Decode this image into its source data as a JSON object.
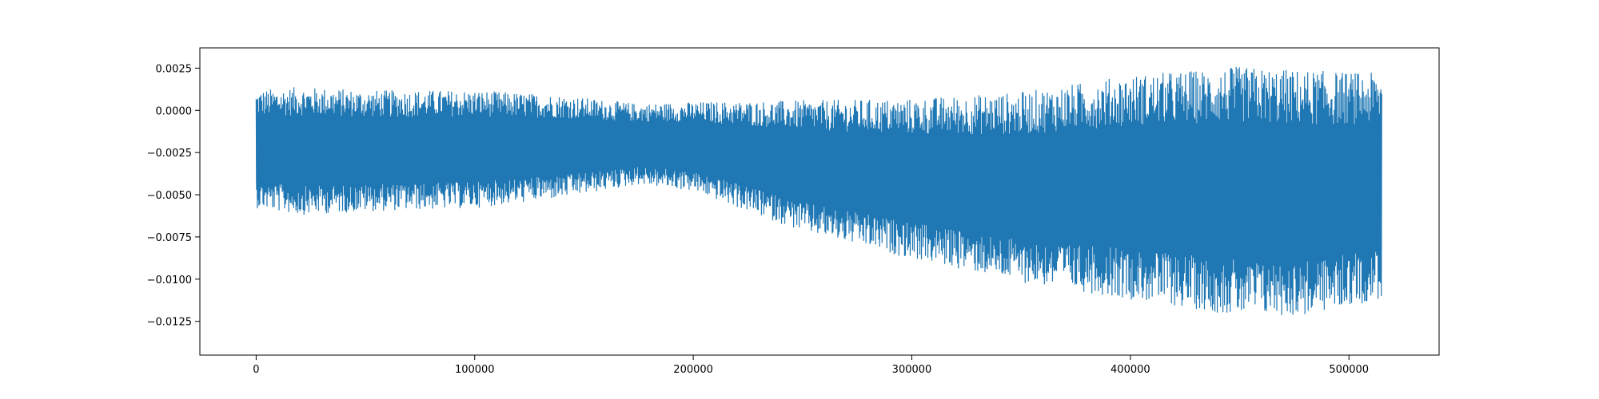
{
  "chart_data": {
    "type": "line",
    "title": "",
    "xlabel": "",
    "ylabel": "",
    "xlim": [
      -25750,
      541250
    ],
    "ylim": [
      -0.0145,
      0.0037
    ],
    "xticks": [
      0,
      100000,
      200000,
      300000,
      400000,
      500000
    ],
    "xtick_labels": [
      "0",
      "100000",
      "200000",
      "300000",
      "400000",
      "500000"
    ],
    "yticks": [
      0.0025,
      0.0,
      -0.0025,
      -0.005,
      -0.0075,
      -0.01,
      -0.0125
    ],
    "ytick_labels": [
      "0.0025",
      "0.0000",
      "−0.0025",
      "−0.0050",
      "−0.0075",
      "−0.0100",
      "−0.0125"
    ],
    "grid": false,
    "legend": "none",
    "series": [
      {
        "color": "#1f77b4",
        "x_range": [
          0,
          515000
        ],
        "baseline": -0.0018,
        "envelope_x": [
          0,
          20000,
          50000,
          100000,
          140000,
          175000,
          200000,
          250000,
          300000,
          350000,
          400000,
          450000,
          480000,
          515000
        ],
        "envelope_upper": [
          0.0012,
          0.0014,
          0.0012,
          0.0012,
          0.0009,
          0.0004,
          0.0005,
          0.0006,
          0.0007,
          0.0011,
          0.0021,
          0.0026,
          0.0024,
          0.0022
        ],
        "envelope_lower": [
          -0.0058,
          -0.0062,
          -0.006,
          -0.0058,
          -0.0052,
          -0.0044,
          -0.0048,
          -0.0072,
          -0.0088,
          -0.0102,
          -0.0112,
          -0.0122,
          -0.0122,
          -0.0112
        ]
      }
    ]
  }
}
